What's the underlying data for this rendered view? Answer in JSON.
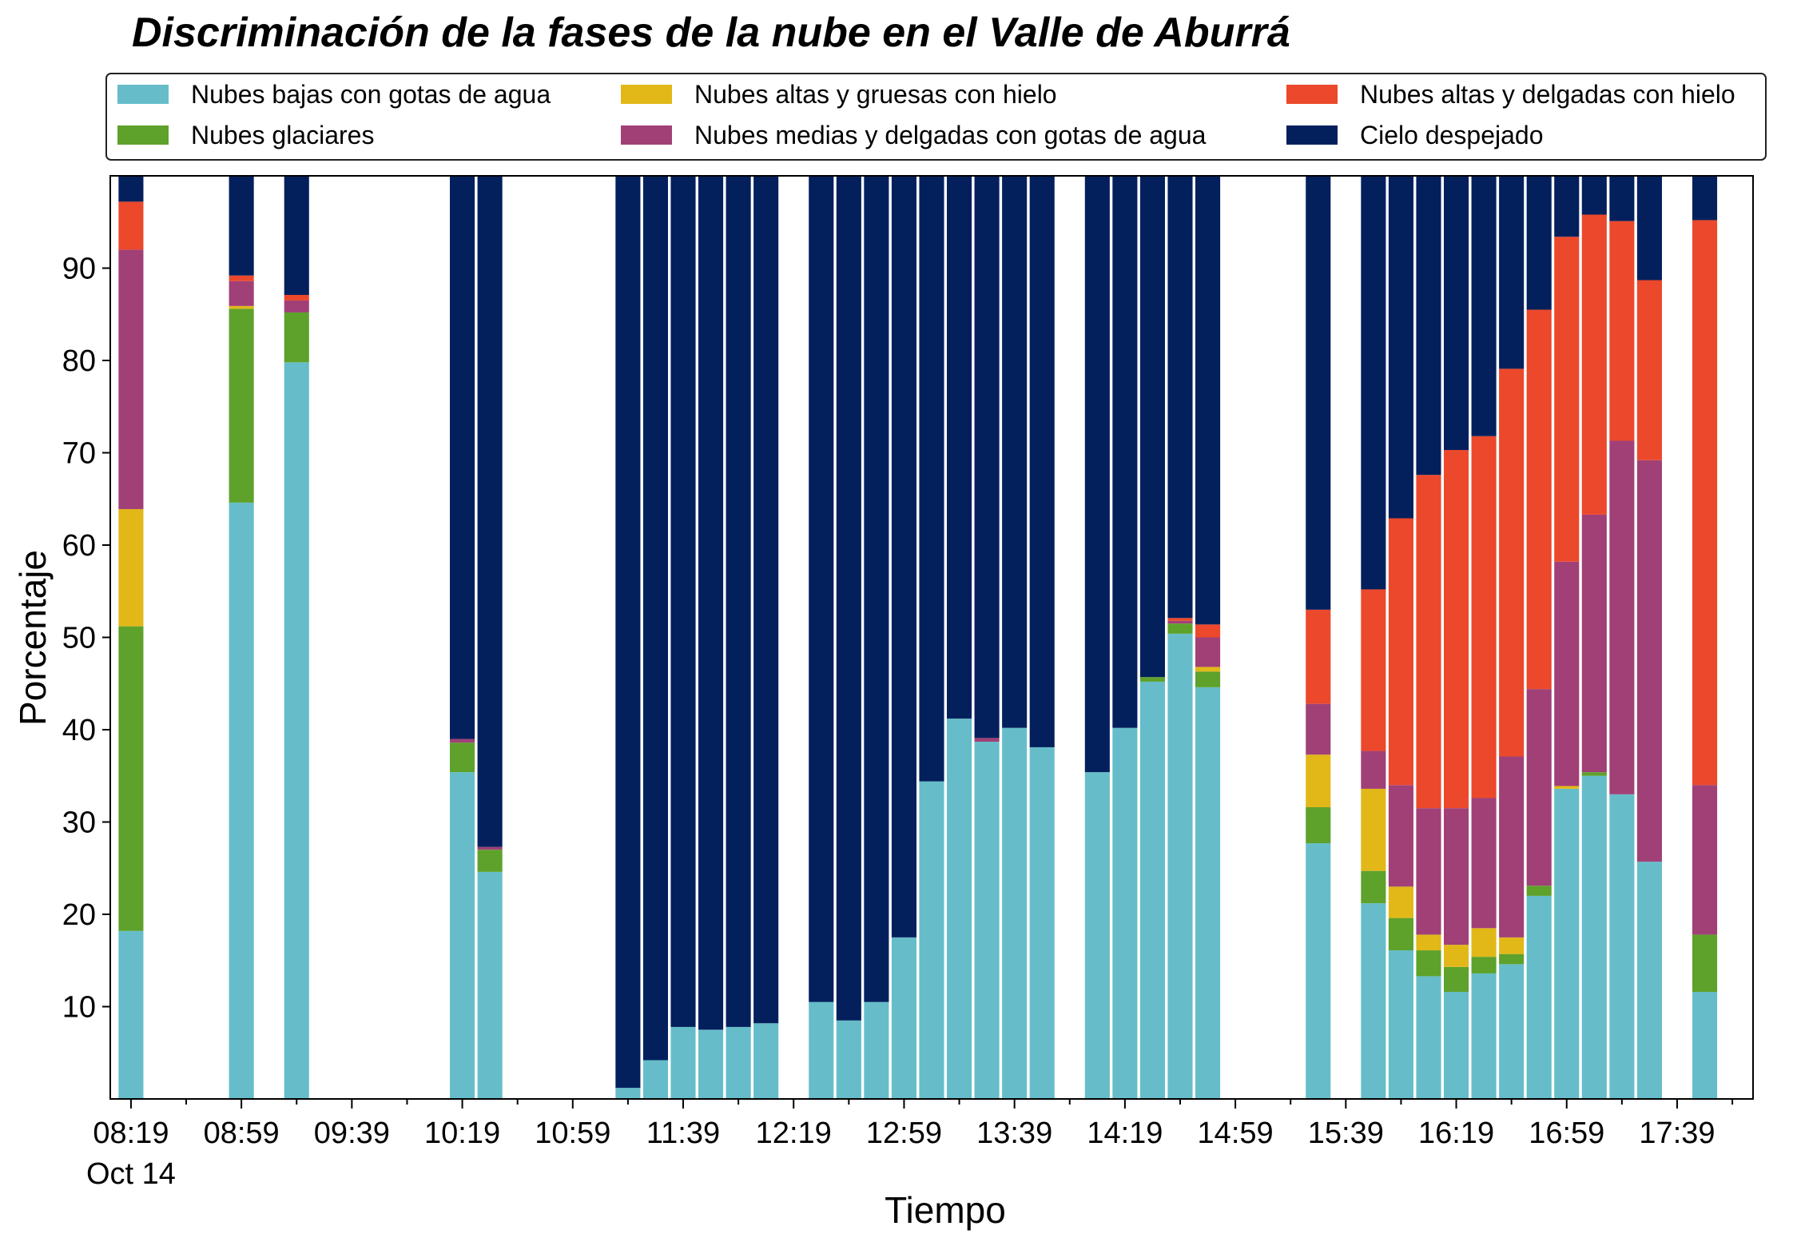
{
  "chart_data": {
    "type": "bar",
    "stacked": true,
    "title": "Discriminación de la fases de la nube en el Valle de Aburrá",
    "xlabel": "Tiempo",
    "ylabel": "Porcentaje",
    "ylim": [
      0,
      100
    ],
    "xlim": [
      -0.75,
      58.75
    ],
    "yticks": [
      "10",
      "20",
      "30",
      "40",
      "50",
      "60",
      "70",
      "80",
      "90"
    ],
    "xtick_labels": [
      {
        "pos": 0,
        "label": "08:19"
      },
      {
        "pos": 4,
        "label": "08:59"
      },
      {
        "pos": 8,
        "label": "09:39"
      },
      {
        "pos": 12,
        "label": "10:19"
      },
      {
        "pos": 16,
        "label": "10:59"
      },
      {
        "pos": 20,
        "label": "11:39"
      },
      {
        "pos": 24,
        "label": "12:19"
      },
      {
        "pos": 28,
        "label": "12:59"
      },
      {
        "pos": 32,
        "label": "13:39"
      },
      {
        "pos": 36,
        "label": "14:19"
      },
      {
        "pos": 40,
        "label": "14:59"
      },
      {
        "pos": 44,
        "label": "15:39"
      },
      {
        "pos": 48,
        "label": "16:19"
      },
      {
        "pos": 52,
        "label": "16:59"
      },
      {
        "pos": 56,
        "label": "17:39"
      }
    ],
    "date_label": "Oct 14",
    "legend_position": "top",
    "categories": [
      "08:19",
      "08:29",
      "08:39",
      "08:49",
      "08:59",
      "09:09",
      "09:19",
      "09:29",
      "09:39",
      "09:49",
      "09:59",
      "10:09",
      "10:19",
      "10:29",
      "10:39",
      "10:49",
      "10:59",
      "11:09",
      "11:19",
      "11:29",
      "11:39",
      "11:49",
      "11:59",
      "12:09",
      "12:19",
      "12:29",
      "12:39",
      "12:49",
      "12:59",
      "13:09",
      "13:19",
      "13:29",
      "13:39",
      "13:49",
      "13:59",
      "14:09",
      "14:19",
      "14:29",
      "14:39",
      "14:49",
      "14:59",
      "15:09",
      "15:19",
      "15:29",
      "15:39",
      "15:49",
      "15:59",
      "16:09",
      "16:19",
      "16:29",
      "16:39",
      "16:49",
      "16:59",
      "17:09",
      "17:19",
      "17:29",
      "17:39",
      "17:49",
      "17:59"
    ],
    "series": [
      {
        "name": "Nubes bajas con gotas de agua",
        "color": "#66bdc9",
        "values": [
          18.2,
          null,
          null,
          null,
          64.6,
          null,
          79.8,
          null,
          null,
          null,
          null,
          null,
          35.4,
          24.6,
          null,
          null,
          null,
          null,
          1.2,
          4.2,
          7.8,
          7.5,
          7.8,
          8.2,
          null,
          10.5,
          8.5,
          10.5,
          17.5,
          34.4,
          41.2,
          38.7,
          40.2,
          38.1,
          null,
          35.4,
          40.2,
          45.2,
          50.4,
          44.6,
          null,
          null,
          null,
          27.7,
          null,
          21.2,
          16.1,
          13.3,
          11.6,
          13.6,
          14.6,
          22.0,
          33.6,
          35.0,
          33.0,
          25.7,
          null,
          11.6,
          null
        ]
      },
      {
        "name": "Nubes glaciares",
        "color": "#5ea12b",
        "values": [
          33.0,
          null,
          null,
          null,
          21.0,
          null,
          5.4,
          null,
          null,
          null,
          null,
          null,
          3.2,
          2.4,
          null,
          null,
          null,
          null,
          0,
          0,
          0,
          0,
          0,
          0,
          null,
          0,
          0,
          0,
          0,
          0,
          0,
          0,
          0,
          0,
          null,
          0,
          0,
          0.5,
          1.1,
          1.7,
          null,
          null,
          null,
          3.9,
          null,
          3.5,
          3.5,
          2.8,
          2.7,
          1.8,
          1.1,
          1.1,
          0,
          0.4,
          0,
          0,
          null,
          6.2,
          null
        ]
      },
      {
        "name": "Nubes altas y gruesas con hielo",
        "color": "#e1b818",
        "values": [
          12.7,
          null,
          null,
          null,
          0.3,
          null,
          0,
          null,
          null,
          null,
          null,
          null,
          0,
          0,
          null,
          null,
          null,
          null,
          0,
          0,
          0,
          0,
          0,
          0,
          null,
          0,
          0,
          0,
          0,
          0,
          0,
          0,
          0,
          0,
          null,
          0,
          0,
          0,
          0,
          0.5,
          null,
          null,
          null,
          5.7,
          null,
          8.9,
          3.4,
          1.7,
          2.4,
          3.1,
          1.8,
          0,
          0.3,
          0,
          0,
          0,
          null,
          0,
          null
        ]
      },
      {
        "name": "Nubes medias y delgadas con gotas de agua",
        "color": "#a04077",
        "values": [
          28.1,
          null,
          null,
          null,
          2.7,
          null,
          1.3,
          null,
          null,
          null,
          null,
          null,
          0.4,
          0.3,
          null,
          null,
          null,
          null,
          0,
          0,
          0,
          0,
          0,
          0,
          null,
          0,
          0,
          0,
          0,
          0,
          0,
          0.4,
          0,
          0,
          null,
          0,
          0,
          0,
          0.3,
          3.2,
          null,
          null,
          null,
          5.5,
          null,
          4.1,
          11.0,
          13.7,
          14.8,
          14.1,
          19.6,
          21.3,
          24.3,
          27.9,
          38.3,
          43.5,
          null,
          16.2,
          null
        ]
      },
      {
        "name": "Nubes altas y delgadas con hielo",
        "color": "#ec482b",
        "values": [
          5.2,
          null,
          null,
          null,
          0.6,
          null,
          0.6,
          null,
          null,
          null,
          null,
          null,
          0,
          0,
          null,
          null,
          null,
          null,
          0,
          0,
          0,
          0,
          0,
          0,
          null,
          0,
          0,
          0,
          0,
          0,
          0,
          0,
          0,
          0,
          null,
          0,
          0,
          0,
          0.3,
          1.4,
          null,
          null,
          null,
          10.2,
          null,
          17.5,
          28.9,
          36.1,
          38.8,
          39.2,
          42.0,
          41.1,
          35.2,
          32.5,
          23.8,
          19.5,
          null,
          61.2,
          null
        ]
      },
      {
        "name": "Cielo despejado",
        "color": "#03205d",
        "values": [
          2.8,
          null,
          null,
          null,
          10.8,
          null,
          12.9,
          null,
          null,
          null,
          null,
          null,
          61.0,
          72.7,
          null,
          null,
          null,
          null,
          98.8,
          95.8,
          92.2,
          92.5,
          92.2,
          91.8,
          null,
          89.5,
          91.5,
          89.5,
          82.5,
          65.6,
          58.8,
          60.9,
          59.8,
          61.9,
          null,
          64.6,
          59.8,
          54.3,
          47.9,
          48.6,
          null,
          null,
          null,
          47.0,
          null,
          44.8,
          37.1,
          32.4,
          29.7,
          28.2,
          20.9,
          14.5,
          6.6,
          4.2,
          4.9,
          11.3,
          null,
          4.8,
          null
        ]
      }
    ]
  }
}
